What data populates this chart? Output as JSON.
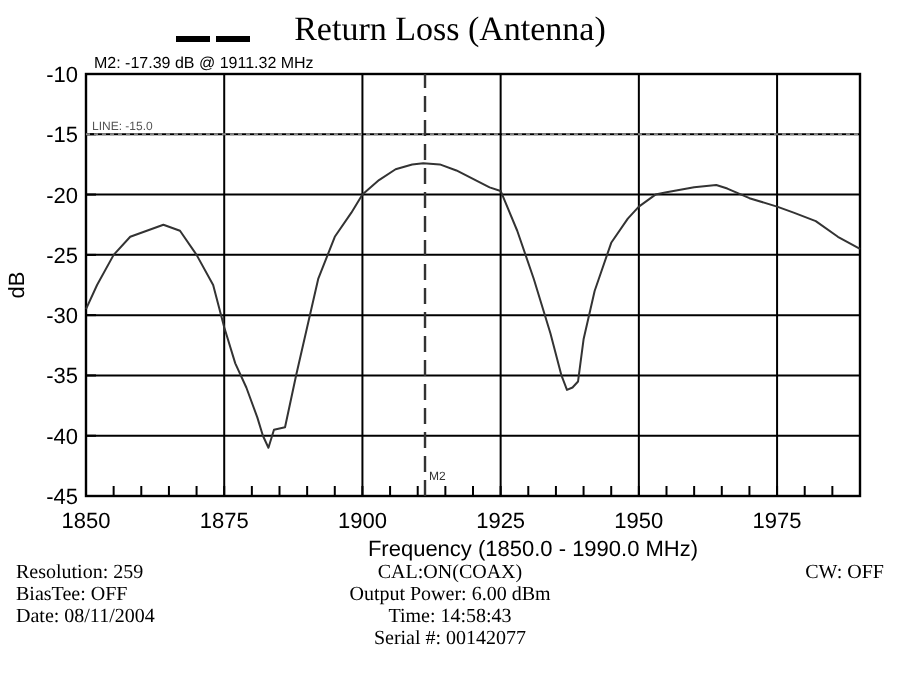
{
  "chart_data": {
    "type": "line",
    "title": "Return Loss (Antenna)",
    "xlabel": "Frequency (1850.0 - 1990.0 MHz)",
    "ylabel": "dB",
    "x": [
      1850,
      1852,
      1855,
      1858,
      1861,
      1864,
      1867,
      1870,
      1873,
      1875,
      1877,
      1879,
      1881,
      1882,
      1883,
      1884,
      1886,
      1888,
      1890,
      1892,
      1895,
      1898,
      1900,
      1903,
      1906,
      1909,
      1911,
      1914,
      1917,
      1920,
      1923,
      1925,
      1928,
      1931,
      1934,
      1936,
      1937,
      1938,
      1939,
      1940,
      1942,
      1945,
      1948,
      1950,
      1953,
      1955,
      1960,
      1964,
      1966,
      1970,
      1975,
      1978,
      1982,
      1986,
      1990
    ],
    "series": [
      {
        "color": "#333333",
        "values": [
          -29.5,
          -27.5,
          -25,
          -23.5,
          -23,
          -22.5,
          -23,
          -25,
          -27.5,
          -31,
          -34,
          -36,
          -38.5,
          -40,
          -41,
          -39.5,
          -39.3,
          -35,
          -31,
          -27,
          -23.5,
          -21.5,
          -20,
          -18.8,
          -17.9,
          -17.5,
          -17.4,
          -17.5,
          -18,
          -18.7,
          -19.4,
          -19.7,
          -23,
          -27,
          -31.5,
          -35,
          -36.2,
          -36,
          -35.5,
          -32,
          -28,
          -24,
          -22,
          -21,
          -20,
          -19.8,
          -19.4,
          -19.2,
          -19.5,
          -20.3,
          -21,
          -21.5,
          -22.2,
          -23.5,
          -24.5
        ]
      }
    ],
    "xlim": [
      1850,
      1990
    ],
    "ylim": [
      -45,
      -10
    ],
    "xticks": [
      1850,
      {
        "value": 1855,
        "label": null
      },
      {
        "value": 1860,
        "label": null
      },
      {
        "value": 1865,
        "label": null
      },
      {
        "value": 1870,
        "label": null
      },
      1875,
      {
        "value": 1880,
        "label": null
      },
      {
        "value": 1885,
        "label": null
      },
      {
        "value": 1890,
        "label": null
      },
      {
        "value": 1895,
        "label": null
      },
      1900,
      {
        "value": 1905,
        "label": null
      },
      {
        "value": 1910,
        "label": null
      },
      {
        "value": 1915,
        "label": null
      },
      {
        "value": 1920,
        "label": null
      },
      1925,
      {
        "value": 1930,
        "label": null
      },
      {
        "value": 1935,
        "label": null
      },
      {
        "value": 1940,
        "label": null
      },
      {
        "value": 1945,
        "label": null
      },
      1950,
      {
        "value": 1955,
        "label": null
      },
      {
        "value": 1960,
        "label": null
      },
      {
        "value": 1965,
        "label": null
      },
      {
        "value": 1970,
        "label": null
      },
      1975,
      {
        "value": 1980,
        "label": null
      },
      {
        "value": 1985,
        "label": null
      }
    ],
    "yticks": [
      -45,
      -40,
      -35,
      -30,
      -25,
      -20,
      -15,
      -10
    ],
    "grid": true,
    "marker": "none",
    "line_style": "solid",
    "ref_lines": [
      {
        "axis": "y",
        "value": -15,
        "label": "LINE: -15.0",
        "line_style": "dotted",
        "color": "#888888"
      },
      {
        "axis": "x",
        "value": 1911.32,
        "label": "M2",
        "line_style": "dashed",
        "color": "#333333"
      }
    ],
    "annotations": [
      "M2: -17.39 dB @ 1911.32 MHz",
      "Resolution:  259",
      "BiasTee: OFF",
      "Date: 08/11/2004",
      "CAL:ON(COAX)",
      "Output Power: 6.00 dBm",
      "Time: 14:58:43",
      "Serial #: 00142077",
      "CW: OFF"
    ]
  }
}
